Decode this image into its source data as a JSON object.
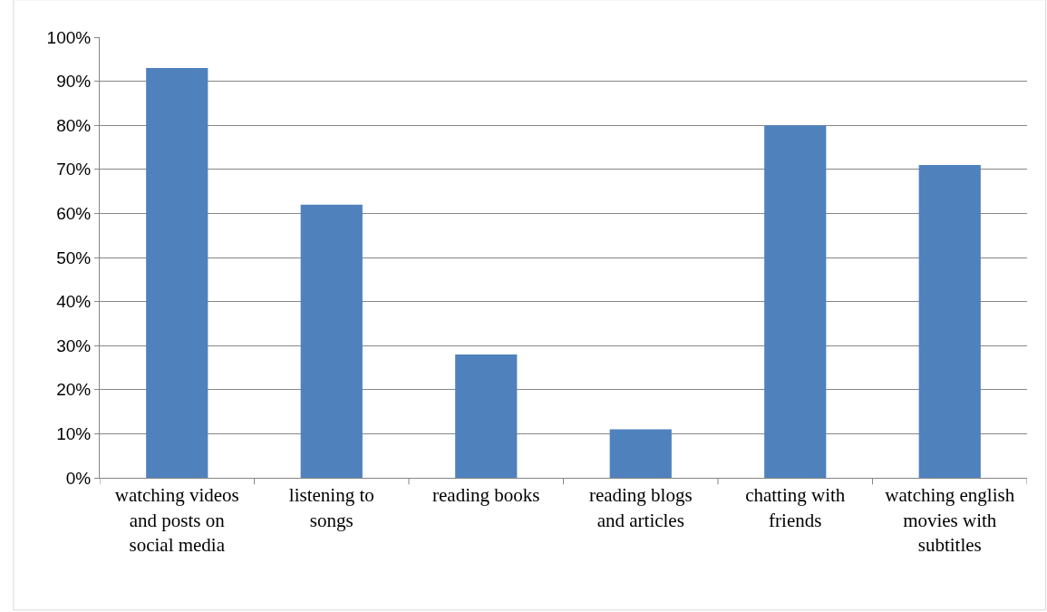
{
  "chart_data": {
    "type": "bar",
    "categories": [
      "watching videos and posts on social media",
      "listening to songs",
      "reading books",
      "reading blogs and articles",
      "chatting with friends",
      "watching english movies with subtitles"
    ],
    "values": [
      93,
      62,
      28,
      11,
      80,
      71
    ],
    "color": "#4f81bd",
    "ylim": [
      0,
      100
    ],
    "yticks": [
      {
        "value": 0,
        "label": "0%"
      },
      {
        "value": 10,
        "label": "10%"
      },
      {
        "value": 20,
        "label": "20%"
      },
      {
        "value": 30,
        "label": "30%"
      },
      {
        "value": 40,
        "label": "40%"
      },
      {
        "value": 50,
        "label": "50%"
      },
      {
        "value": 60,
        "label": "60%"
      },
      {
        "value": 70,
        "label": "70%"
      },
      {
        "value": 80,
        "label": "80%"
      },
      {
        "value": 90,
        "label": "90%"
      },
      {
        "value": 100,
        "label": "100%"
      }
    ],
    "grid": "y"
  }
}
